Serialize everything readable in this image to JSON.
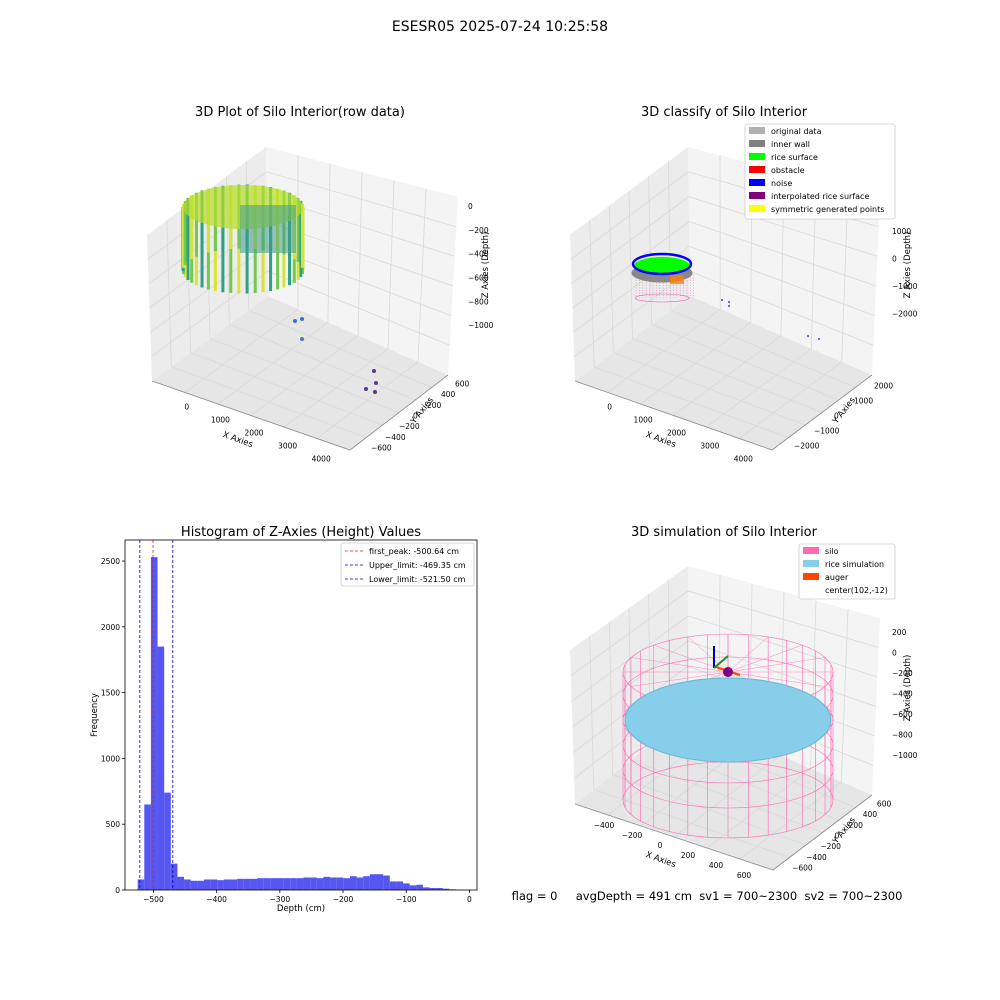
{
  "suptitle": "ESESR05 2025-07-24 10:25:58",
  "colors": {
    "hist_bar": "#4444ee",
    "peak_line": "#d62728",
    "limit_line": "#0000cc",
    "silo_wire": "#ff69b4",
    "rice_sim": "#87ceeb",
    "auger": "#ff4500",
    "center": "#800080",
    "pane": "#f2f2f2",
    "grid": "#d9d9d9",
    "noise_pts": "#4169e1"
  },
  "chart_data": [
    {
      "type": "scatter3d",
      "title": "3D Plot of Silo Interior(row data)",
      "xlabel": "X Axies",
      "ylabel": "Y Axies",
      "zlabel": "Z Axies (Depth)",
      "x_ticks": [
        "0",
        "1000",
        "2000",
        "3000",
        "4000"
      ],
      "y_ticks": [
        "−600",
        "−400",
        "−200",
        "0",
        "200",
        "400",
        "600"
      ],
      "z_ticks": [
        "0",
        "−200",
        "−400",
        "−600",
        "−800",
        "−1000"
      ],
      "xlim": [
        -500,
        4500
      ],
      "ylim": [
        -650,
        650
      ],
      "zlim": [
        -1100,
        50
      ],
      "colormap": "viridis",
      "description_points": [
        {
          "x": 1450,
          "y": 550,
          "z": -900
        },
        {
          "x": 1550,
          "y": 600,
          "z": -900
        },
        {
          "x": 1550,
          "y": 600,
          "z": -1000
        },
        {
          "x": 3550,
          "y": -350,
          "z": -950
        },
        {
          "x": 3700,
          "y": -400,
          "z": -900
        },
        {
          "x": 3850,
          "y": -250,
          "z": -950
        },
        {
          "x": 3900,
          "y": -300,
          "z": -1000
        }
      ]
    },
    {
      "type": "scatter3d",
      "title": "3D classify of Silo Interior",
      "xlabel": "X Axies",
      "ylabel": "Y Axies",
      "zlabel": "Z Axies (Depth)",
      "x_ticks": [
        "0",
        "1000",
        "2000",
        "3000",
        "4000"
      ],
      "y_ticks": [
        "−2000",
        "−1000",
        "0",
        "1000",
        "2000"
      ],
      "z_ticks": [
        "1000",
        "0",
        "−1000",
        "−2000"
      ],
      "legend_position": "top-right",
      "legend": [
        {
          "label": "original data",
          "color": "#b0b0b0"
        },
        {
          "label": "inner wall",
          "color": "#808080"
        },
        {
          "label": "rice surface",
          "color": "#00ff00"
        },
        {
          "label": "obstacle",
          "color": "#ff0000"
        },
        {
          "label": "noise",
          "color": "#0000ff"
        },
        {
          "label": "interpolated rice surface",
          "color": "#800080"
        },
        {
          "label": "symmetric generated points",
          "color": "#ffff00"
        }
      ]
    },
    {
      "type": "bar",
      "title": "Histogram of Z-Axies (Height) Values",
      "xlabel": "Depth (cm)",
      "ylabel": "Frequency",
      "xlim": [
        -545,
        12
      ],
      "ylim": [
        0,
        2660
      ],
      "x_ticks": [
        -500,
        -400,
        -300,
        -200,
        -100,
        0
      ],
      "y_ticks": [
        0,
        500,
        1000,
        1500,
        2000,
        2500
      ],
      "bin_width": 10.5,
      "bin_start": -525,
      "values": [
        80,
        650,
        2530,
        1850,
        740,
        200,
        100,
        80,
        70,
        70,
        80,
        80,
        75,
        80,
        80,
        85,
        85,
        85,
        90,
        90,
        90,
        90,
        90,
        90,
        90,
        95,
        95,
        90,
        100,
        95,
        95,
        90,
        105,
        95,
        105,
        120,
        120,
        110,
        65,
        65,
        50,
        35,
        40,
        20,
        15,
        15,
        10,
        5
      ],
      "legend_position": "top-right",
      "vlines": [
        {
          "label": "first_peak: -500.64 cm",
          "x": -500.64,
          "color": "#d62728"
        },
        {
          "label": "Upper_limit: -469.35 cm",
          "x": -469.35,
          "color": "#0000cc"
        },
        {
          "label": "Lower_limit: -521.50 cm",
          "x": -521.5,
          "color": "#0000cc"
        }
      ]
    },
    {
      "type": "surface3d",
      "title": "3D simulation of Silo Interior",
      "xlabel": "X Axies",
      "ylabel": "Y Axies",
      "zlabel": "Z Axies (Depth)",
      "x_ticks": [
        "−400",
        "−200",
        "0",
        "200",
        "400",
        "600"
      ],
      "y_ticks": [
        "−600",
        "−400",
        "−200",
        "0",
        "200",
        "400",
        "600"
      ],
      "z_ticks": [
        "200",
        "0",
        "−200",
        "−400",
        "−600",
        "−800",
        "−1000"
      ],
      "legend_position": "top-right",
      "legend": [
        {
          "label": "silo",
          "color": "#ff69b4"
        },
        {
          "label": "rice simulation",
          "color": "#87ceeb"
        },
        {
          "label": "auger",
          "color": "#ff4500"
        },
        {
          "label": "center(102,-12)",
          "color": ""
        }
      ],
      "footer": "flag = 0     avgDepth = 491 cm  sv1 = 700~2300  sv2 = 700~2300"
    }
  ]
}
